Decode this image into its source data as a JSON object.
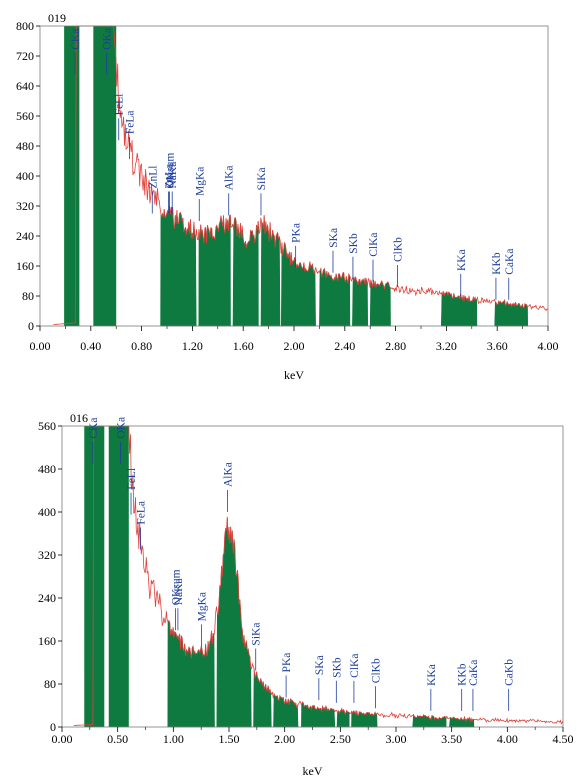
{
  "chart_data": [
    {
      "type": "area",
      "title": "019",
      "xlabel": "keV",
      "ylabel": "",
      "xlim": [
        0,
        4
      ],
      "ylim": [
        0,
        800
      ],
      "xticks": [
        0,
        0.4,
        0.8,
        1.2,
        1.6,
        2.0,
        2.4,
        2.8,
        3.2,
        3.6,
        4.0
      ],
      "xtick_labels": [
        "0.00",
        "0.40",
        "0.80",
        "1.20",
        "1.60",
        "2.00",
        "2.40",
        "2.80",
        "3.20",
        "3.60",
        "4.00"
      ],
      "yticks": [
        0,
        80,
        160,
        240,
        320,
        400,
        480,
        560,
        640,
        720,
        800
      ],
      "yrise": 4,
      "ytail": 25,
      "ypeak": 0.6,
      "curve": [
        [
          0.28,
          800
        ],
        [
          0.58,
          800
        ],
        [
          0.6,
          700
        ],
        [
          0.62,
          620
        ],
        [
          0.66,
          540
        ],
        [
          0.7,
          480
        ],
        [
          0.75,
          430
        ],
        [
          0.8,
          400
        ],
        [
          0.85,
          370
        ],
        [
          0.9,
          345
        ],
        [
          0.95,
          320
        ],
        [
          1.0,
          300
        ],
        [
          1.05,
          290
        ],
        [
          1.1,
          275
        ],
        [
          1.2,
          255
        ],
        [
          1.3,
          240
        ],
        [
          1.4,
          255
        ],
        [
          1.48,
          285
        ],
        [
          1.55,
          265
        ],
        [
          1.62,
          225
        ],
        [
          1.7,
          250
        ],
        [
          1.76,
          275
        ],
        [
          1.82,
          245
        ],
        [
          1.9,
          210
        ],
        [
          2.0,
          175
        ],
        [
          2.1,
          160
        ],
        [
          2.2,
          145
        ],
        [
          2.3,
          135
        ],
        [
          2.4,
          130
        ],
        [
          2.5,
          122
        ],
        [
          2.6,
          117
        ],
        [
          2.7,
          110
        ],
        [
          2.8,
          100
        ],
        [
          3.0,
          92
        ],
        [
          3.2,
          85
        ],
        [
          3.3,
          78
        ],
        [
          3.4,
          72
        ],
        [
          3.6,
          62
        ],
        [
          3.8,
          55
        ],
        [
          4.0,
          45
        ]
      ],
      "fill_regions": [
        [
          0.19,
          0.31
        ],
        [
          0.42,
          0.6
        ],
        [
          0.95,
          1.23
        ],
        [
          1.25,
          1.5
        ],
        [
          1.52,
          1.72
        ],
        [
          1.74,
          1.89
        ],
        [
          1.9,
          2.17
        ],
        [
          2.2,
          2.44
        ],
        [
          2.46,
          2.58
        ],
        [
          2.6,
          2.76
        ],
        [
          3.16,
          3.44
        ],
        [
          3.58,
          3.84
        ]
      ],
      "peaks": [
        {
          "label": "CKa",
          "x": 0.277,
          "v": 670,
          "inside": true
        },
        {
          "label": "OKa",
          "x": 0.525,
          "v": 670,
          "inside": true
        },
        {
          "label": "FeLl",
          "x": 0.62,
          "v": 495
        },
        {
          "label": "FeLa",
          "x": 0.705,
          "v": 445
        },
        {
          "label": "ZnLl",
          "x": 0.884,
          "v": 300
        },
        {
          "label": "OKsum",
          "x": 1.02,
          "v": 300
        },
        {
          "label": "NaKa",
          "x": 1.041,
          "v": 300
        },
        {
          "label": "ZnLa",
          "x": 1.012,
          "v": 300
        },
        {
          "label": "MgKa",
          "x": 1.254,
          "v": 280
        },
        {
          "label": "AlKa",
          "x": 1.486,
          "v": 295
        },
        {
          "label": "SiKa",
          "x": 1.74,
          "v": 295
        },
        {
          "label": "PKa",
          "x": 2.013,
          "v": 155
        },
        {
          "label": "SKa",
          "x": 2.307,
          "v": 142
        },
        {
          "label": "SKb",
          "x": 2.464,
          "v": 126
        },
        {
          "label": "ClKa",
          "x": 2.622,
          "v": 118
        },
        {
          "label": "ClKb",
          "x": 2.815,
          "v": 104
        },
        {
          "label": "KKa",
          "x": 3.313,
          "v": 80
        },
        {
          "label": "KKb",
          "x": 3.59,
          "v": 70
        },
        {
          "label": "CaKa",
          "x": 3.691,
          "v": 70
        }
      ]
    },
    {
      "type": "area",
      "title": "016",
      "xlabel": "keV",
      "ylabel": "",
      "xlim": [
        0,
        4.5
      ],
      "ylim": [
        0,
        560
      ],
      "xticks": [
        0,
        0.5,
        1.0,
        1.5,
        2.0,
        2.5,
        3.0,
        3.5,
        4.0,
        4.5
      ],
      "xtick_labels": [
        "0.00",
        "0.50",
        "1.00",
        "1.50",
        "2.00",
        "2.50",
        "3.00",
        "3.50",
        "4.00",
        "4.50"
      ],
      "yticks": [
        0,
        80,
        160,
        240,
        320,
        400,
        480,
        560
      ],
      "yrise": 3,
      "ytail": 8,
      "ypeak": 0.5,
      "curve": [
        [
          0.28,
          560
        ],
        [
          0.6,
          560
        ],
        [
          0.63,
          470
        ],
        [
          0.67,
          390
        ],
        [
          0.72,
          320
        ],
        [
          0.78,
          270
        ],
        [
          0.85,
          235
        ],
        [
          0.92,
          205
        ],
        [
          1.0,
          180
        ],
        [
          1.05,
          165
        ],
        [
          1.1,
          150
        ],
        [
          1.2,
          140
        ],
        [
          1.3,
          145
        ],
        [
          1.36,
          170
        ],
        [
          1.42,
          260
        ],
        [
          1.46,
          360
        ],
        [
          1.49,
          390
        ],
        [
          1.53,
          360
        ],
        [
          1.58,
          270
        ],
        [
          1.63,
          170
        ],
        [
          1.7,
          110
        ],
        [
          1.8,
          80
        ],
        [
          1.9,
          62
        ],
        [
          2.0,
          50
        ],
        [
          2.1,
          44
        ],
        [
          2.2,
          38
        ],
        [
          2.4,
          32
        ],
        [
          2.6,
          27
        ],
        [
          2.8,
          24
        ],
        [
          3.0,
          21
        ],
        [
          3.2,
          19
        ],
        [
          3.4,
          17
        ],
        [
          3.6,
          15
        ],
        [
          3.8,
          13
        ],
        [
          4.0,
          12
        ],
        [
          4.5,
          9
        ]
      ],
      "fill_regions": [
        [
          0.2,
          0.38
        ],
        [
          0.42,
          0.6
        ],
        [
          0.95,
          1.37
        ],
        [
          1.39,
          1.7
        ],
        [
          1.72,
          1.88
        ],
        [
          1.9,
          2.12
        ],
        [
          2.15,
          2.45
        ],
        [
          2.47,
          2.58
        ],
        [
          2.6,
          2.83
        ],
        [
          3.15,
          3.45
        ],
        [
          3.48,
          3.7
        ]
      ],
      "peaks": [
        {
          "label": "CKa",
          "x": 0.277,
          "v": 490,
          "inside": true
        },
        {
          "label": "OKa",
          "x": 0.525,
          "v": 490,
          "inside": true
        },
        {
          "label": "FeLl",
          "x": 0.62,
          "v": 395
        },
        {
          "label": "FeLa",
          "x": 0.705,
          "v": 330
        },
        {
          "label": "OKsum",
          "x": 1.02,
          "v": 180
        },
        {
          "label": "NaKa",
          "x": 1.041,
          "v": 180
        },
        {
          "label": "MgKa",
          "x": 1.254,
          "v": 150
        },
        {
          "label": "AlKa",
          "x": 1.486,
          "v": 400
        },
        {
          "label": "SiKa",
          "x": 1.74,
          "v": 105
        },
        {
          "label": "PKa",
          "x": 2.013,
          "v": 55
        },
        {
          "label": "SKa",
          "x": 2.307,
          "v": 50
        },
        {
          "label": "SKb",
          "x": 2.464,
          "v": 45
        },
        {
          "label": "ClKa",
          "x": 2.622,
          "v": 45
        },
        {
          "label": "ClKb",
          "x": 2.815,
          "v": 35
        },
        {
          "label": "KKa",
          "x": 3.313,
          "v": 30
        },
        {
          "label": "KKb",
          "x": 3.59,
          "v": 30
        },
        {
          "label": "CaKa",
          "x": 3.691,
          "v": 30
        },
        {
          "label": "CaKb",
          "x": 4.012,
          "v": 30
        }
      ]
    }
  ]
}
